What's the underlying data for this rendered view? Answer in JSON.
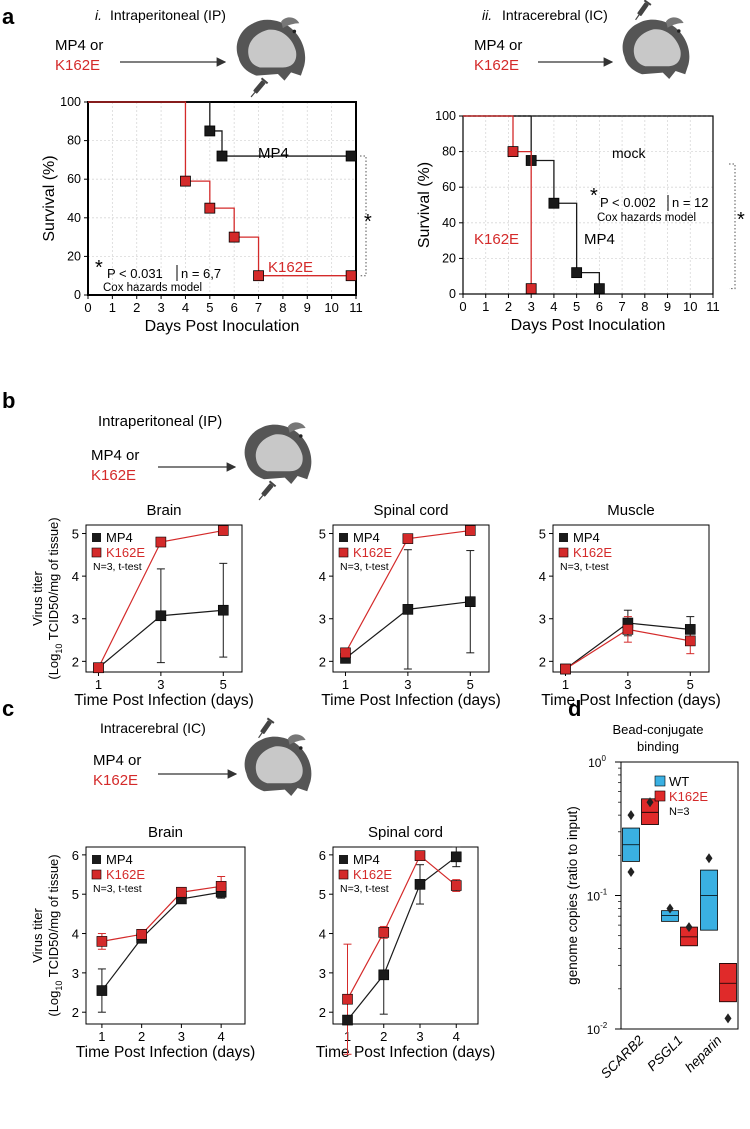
{
  "colors": {
    "mp4": "#1a1a1a",
    "k162e": "#d42a2a",
    "wt_box": "#3ab0e2",
    "k162e_box": "#e02a2a",
    "mouse_dark": "#555555",
    "mouse_light": "#cccccc"
  },
  "labels": {
    "a": "a",
    "b": "b",
    "c": "c",
    "d": "d",
    "a_i_num": "i.",
    "a_i_title": "Intraperitoneal (IP)",
    "a_ii_num": "ii.",
    "a_ii_title": "Intracerebral (IC)",
    "mp4_or": "MP4 or",
    "k162e": "K162E",
    "b_title": "Intraperitoneal (IP)",
    "c_title": "Intracerebral (IC)",
    "d_title_1": "Bead-conjugate",
    "d_title_2": "binding"
  },
  "chart_data": [
    {
      "id": "a_i",
      "type": "line",
      "subtype": "kaplan-meier",
      "xlabel": "Days Post Inoculation",
      "ylabel": "Survival (%)",
      "xlim": [
        0,
        11
      ],
      "ylim": [
        0,
        100
      ],
      "xticks": [
        0,
        1,
        2,
        3,
        4,
        5,
        6,
        7,
        8,
        9,
        10,
        11
      ],
      "yticks": [
        0,
        20,
        40,
        60,
        80,
        100
      ],
      "grid": true,
      "series": [
        {
          "name": "MP4",
          "steps": [
            [
              0,
              100
            ],
            [
              5,
              100
            ],
            [
              5,
              85
            ],
            [
              5.5,
              85
            ],
            [
              5.5,
              72
            ],
            [
              10.8,
              72
            ]
          ],
          "markers": [
            [
              5,
              85
            ],
            [
              5.5,
              72
            ],
            [
              10.8,
              72
            ]
          ]
        },
        {
          "name": "K162E",
          "steps": [
            [
              0,
              100
            ],
            [
              4,
              100
            ],
            [
              4,
              59
            ],
            [
              5,
              59
            ],
            [
              5,
              45
            ],
            [
              6,
              45
            ],
            [
              6,
              30
            ],
            [
              7,
              30
            ],
            [
              7,
              10
            ],
            [
              10.8,
              10
            ]
          ],
          "markers": [
            [
              4,
              59
            ],
            [
              5,
              45
            ],
            [
              6,
              30
            ],
            [
              7,
              10
            ],
            [
              10.8,
              10
            ]
          ]
        }
      ],
      "annotations": {
        "star": "*",
        "p_text": "P < 0.031",
        "n_text": "n = 6,7",
        "model": "Cox hazards model",
        "side_star": "*"
      }
    },
    {
      "id": "a_ii",
      "type": "line",
      "subtype": "kaplan-meier",
      "xlabel": "Days Post Inoculation",
      "ylabel": "Survival (%)",
      "xlim": [
        0,
        11
      ],
      "ylim": [
        0,
        100
      ],
      "xticks": [
        0,
        1,
        2,
        3,
        4,
        5,
        6,
        7,
        8,
        9,
        10,
        11
      ],
      "yticks": [
        0,
        20,
        40,
        60,
        80,
        100
      ],
      "grid": true,
      "series": [
        {
          "name": "mock",
          "steps": [
            [
              0,
              100
            ],
            [
              11,
              100
            ]
          ],
          "dashed": true
        },
        {
          "name": "MP4",
          "steps": [
            [
              0,
              100
            ],
            [
              3,
              100
            ],
            [
              3,
              75
            ],
            [
              4,
              75
            ],
            [
              4,
              51
            ],
            [
              5,
              51
            ],
            [
              5,
              12
            ],
            [
              6,
              12
            ],
            [
              6,
              3
            ]
          ],
          "markers": [
            [
              3,
              75
            ],
            [
              4,
              51
            ],
            [
              5,
              12
            ],
            [
              6,
              3
            ]
          ]
        },
        {
          "name": "K162E",
          "steps": [
            [
              0,
              100
            ],
            [
              2.2,
              100
            ],
            [
              2.2,
              80
            ],
            [
              3,
              80
            ],
            [
              3,
              3
            ]
          ],
          "markers": [
            [
              2.2,
              80
            ],
            [
              3,
              3
            ]
          ]
        }
      ],
      "annotations": {
        "star": "*",
        "p_text": "P < 0.002",
        "n_text": "n = 12",
        "model": "Cox hazards model",
        "side_star": "*"
      }
    },
    {
      "id": "b_brain",
      "type": "line",
      "title": "Brain",
      "xlabel": "Time Post Infection (days)",
      "ylabel_line1": "Virus titer",
      "ylabel_line2": "(Log",
      "ylabel_sub": "10",
      "ylabel_line3": " TCID50/mg of tissue)",
      "x": [
        1,
        3,
        5
      ],
      "xlim": [
        0.6,
        5.6
      ],
      "ylim": [
        1.75,
        5.2
      ],
      "xticks": [
        1,
        3,
        5
      ],
      "yticks": [
        2,
        3,
        4,
        5
      ],
      "legend_note": "N=3, t-test",
      "series": [
        {
          "name": "MP4",
          "y": [
            1.85,
            3.07,
            3.2
          ],
          "err": [
            0,
            1.1,
            1.1
          ]
        },
        {
          "name": "K162E",
          "y": [
            1.85,
            4.8,
            5.07
          ],
          "err": [
            0,
            0.05,
            0.1
          ]
        }
      ]
    },
    {
      "id": "b_spinal",
      "type": "line",
      "title": "Spinal cord",
      "xlabel": "Time Post Infection (days)",
      "x": [
        1,
        3,
        5
      ],
      "xlim": [
        0.6,
        5.6
      ],
      "ylim": [
        1.75,
        5.2
      ],
      "xticks": [
        1,
        3,
        5
      ],
      "yticks": [
        2,
        3,
        4,
        5
      ],
      "legend_note": "N=3, t-test",
      "series": [
        {
          "name": "MP4",
          "y": [
            2.07,
            3.22,
            3.4
          ],
          "err": [
            0,
            1.4,
            1.2
          ]
        },
        {
          "name": "K162E",
          "y": [
            2.2,
            4.88,
            5.07
          ],
          "err": [
            0,
            0.05,
            0.05
          ]
        }
      ]
    },
    {
      "id": "b_muscle",
      "type": "line",
      "title": "Muscle",
      "xlabel": "Time Post Infection (days)",
      "x": [
        1,
        3,
        5
      ],
      "xlim": [
        0.6,
        5.6
      ],
      "ylim": [
        1.75,
        5.2
      ],
      "xticks": [
        1,
        3,
        5
      ],
      "yticks": [
        2,
        3,
        4,
        5
      ],
      "legend_note": "N=3, t-test",
      "series": [
        {
          "name": "MP4",
          "y": [
            1.82,
            2.9,
            2.75
          ],
          "err": [
            0,
            0.3,
            0.3
          ]
        },
        {
          "name": "K162E",
          "y": [
            1.82,
            2.75,
            2.48
          ],
          "err": [
            0,
            0.3,
            0.3
          ]
        }
      ]
    },
    {
      "id": "c_brain",
      "type": "line",
      "title": "Brain",
      "xlabel": "Time Post Infection (days)",
      "ylabel_line1": "Virus titer",
      "ylabel_line2": "(Log",
      "ylabel_sub": "10",
      "ylabel_line3": " TCID50/mg of tissue)",
      "x": [
        1,
        2,
        3,
        4
      ],
      "xlim": [
        0.6,
        4.6
      ],
      "ylim": [
        1.7,
        6.2
      ],
      "xticks": [
        1,
        2,
        3,
        4
      ],
      "yticks": [
        2,
        3,
        4,
        5,
        6
      ],
      "legend_note": "N=3, t-test",
      "series": [
        {
          "name": "MP4",
          "y": [
            2.55,
            3.88,
            4.88,
            5.05
          ],
          "err": [
            0.55,
            0.1,
            0.1,
            0.15
          ]
        },
        {
          "name": "K162E",
          "y": [
            3.8,
            3.98,
            5.05,
            5.2
          ],
          "err": [
            0.2,
            0.1,
            0.1,
            0.25
          ]
        }
      ]
    },
    {
      "id": "c_spinal",
      "type": "line",
      "title": "Spinal cord",
      "xlabel": "Time Post Infection (days)",
      "x": [
        1,
        2,
        3,
        4
      ],
      "xlim": [
        0.6,
        4.6
      ],
      "ylim": [
        1.7,
        6.2
      ],
      "xticks": [
        1,
        2,
        3,
        4
      ],
      "yticks": [
        2,
        3,
        4,
        5,
        6
      ],
      "legend_note": "N=3, t-test",
      "series": [
        {
          "name": "MP4",
          "y": [
            1.8,
            2.95,
            5.25,
            5.95
          ],
          "err": [
            0.1,
            1.0,
            0.5,
            0.25
          ]
        },
        {
          "name": "K162E",
          "y": [
            2.33,
            4.03,
            5.98,
            5.22
          ],
          "err": [
            1.4,
            0.15,
            0.1,
            0.15
          ]
        }
      ]
    },
    {
      "id": "d",
      "type": "box",
      "yscale": "log",
      "ylabel": "genome copies (ratio to input)",
      "ylim": [
        0.01,
        1.0
      ],
      "yticks": [
        {
          "v": 1.0,
          "base": "10",
          "exp": "0"
        },
        {
          "v": 0.1,
          "base": "10",
          "exp": "-1"
        },
        {
          "v": 0.01,
          "base": "10",
          "exp": "-2"
        }
      ],
      "categories": [
        "SCARB2",
        "PSGL1",
        "heparin"
      ],
      "legend_note": "N=3",
      "series": [
        {
          "name": "WT",
          "boxes": [
            [
              0.18,
              0.32,
              0.24
            ],
            [
              0.064,
              0.077,
              0.071
            ],
            [
              0.055,
              0.155,
              0.1
            ]
          ],
          "points": [
            [
              0.15,
              0.4
            ],
            [
              0.08
            ],
            [
              0.19
            ]
          ]
        },
        {
          "name": "K162E",
          "boxes": [
            [
              0.34,
              0.53,
              0.42
            ],
            [
              0.042,
              0.058,
              0.049
            ],
            [
              0.016,
              0.031,
              0.022
            ]
          ],
          "points": [
            [
              0.5
            ],
            [
              0.058
            ],
            [
              0.012
            ]
          ]
        }
      ]
    }
  ]
}
